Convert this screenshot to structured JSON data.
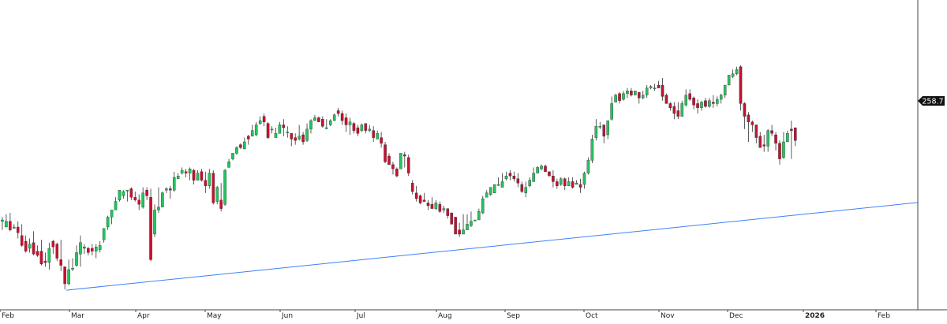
{
  "chart_data": {
    "type": "candlestick",
    "xlabel": "",
    "ylabel": "",
    "last_price": "258.7",
    "months": [
      "Feb",
      "Mar",
      "Apr",
      "May",
      "Jun",
      "Jul",
      "Aug",
      "Sep",
      "Oct",
      "Nov",
      "Dec",
      "2026",
      "Feb"
    ],
    "bold_months": [
      "2026"
    ],
    "ylim": [
      180,
      340
    ],
    "colors": {
      "up": "#22c55e",
      "down": "#c8102e",
      "wick": "#333333",
      "trendline": "#3b82f6",
      "axis": "#444444",
      "pricebox": "#111111"
    },
    "trendline": {
      "from": {
        "day": 80,
        "price": 193.5
      },
      "to": {
        "day": 1152,
        "price": 255.3
      }
    },
    "candles": [
      [
        240,
        234,
        247,
        234
      ],
      [
        242,
        243,
        245,
        236
      ],
      [
        238,
        242,
        247,
        241
      ],
      [
        242,
        236,
        248,
        235
      ],
      [
        237,
        238,
        240,
        237
      ],
      [
        238,
        234,
        242,
        230
      ],
      [
        232,
        225,
        240,
        224
      ],
      [
        228,
        221,
        232,
        220
      ],
      [
        223,
        226,
        230,
        220
      ],
      [
        227,
        219,
        235,
        218
      ],
      [
        221,
        218,
        225,
        217
      ],
      [
        221,
        212,
        229,
        211
      ],
      [
        214,
        213,
        220,
        210
      ],
      [
        213,
        223,
        227,
        208
      ],
      [
        228,
        224,
        229,
        219
      ],
      [
        226,
        216,
        227,
        214
      ],
      [
        215,
        211,
        229,
        207
      ],
      [
        210,
        198,
        210,
        194
      ],
      [
        198,
        208,
        215,
        197
      ],
      [
        209,
        209,
        216,
        207
      ],
      [
        211,
        220,
        225,
        210
      ],
      [
        219,
        227,
        232,
        210
      ],
      [
        223,
        224,
        226,
        219
      ],
      [
        223,
        220,
        224,
        218
      ],
      [
        223,
        221,
        226,
        218
      ],
      [
        221,
        224,
        226,
        216
      ],
      [
        222,
        225,
        228,
        220
      ],
      [
        229,
        237,
        237,
        227
      ],
      [
        238,
        245,
        246,
        236
      ],
      [
        245,
        250,
        250,
        240
      ],
      [
        250,
        256,
        259,
        250
      ],
      [
        257,
        264,
        264,
        256
      ],
      [
        260,
        263,
        264,
        258
      ],
      [
        264,
        264,
        264,
        256
      ],
      [
        265,
        259,
        266,
        257
      ],
      [
        259,
        257,
        263,
        256
      ],
      [
        257,
        254,
        261,
        250
      ],
      [
        252,
        262,
        266,
        251
      ],
      [
        264,
        260,
        266,
        257
      ],
      [
        259,
        215,
        265,
        214
      ],
      [
        233,
        250,
        254,
        231
      ],
      [
        250,
        252,
        266,
        248
      ],
      [
        252,
        262,
        263,
        252
      ],
      [
        264,
        265,
        266,
        262
      ],
      [
        265,
        264,
        267,
        258
      ],
      [
        264,
        273,
        277,
        263
      ],
      [
        272,
        274,
        276,
        272
      ],
      [
        276,
        278,
        280,
        275
      ],
      [
        277,
        276,
        279,
        273
      ],
      [
        276,
        279,
        280,
        271
      ],
      [
        278,
        271,
        279,
        268
      ],
      [
        271,
        276,
        278,
        275
      ],
      [
        277,
        271,
        279,
        270
      ],
      [
        271,
        267,
        277,
        262
      ],
      [
        267,
        276,
        279,
        265
      ],
      [
        276,
        255,
        278,
        254
      ],
      [
        256,
        266,
        267,
        254
      ],
      [
        257,
        251,
        269,
        249
      ],
      [
        254,
        278,
        279,
        253
      ],
      [
        280,
        284,
        286,
        280
      ],
      [
        286,
        290,
        288,
        285
      ],
      [
        290,
        294,
        295,
        289
      ],
      [
        296,
        294,
        297,
        293
      ],
      [
        293,
        298,
        301,
        293
      ],
      [
        302,
        300,
        303,
        296
      ],
      [
        302,
        306,
        310,
        303
      ],
      [
        303,
        310,
        312,
        302
      ],
      [
        311,
        313,
        316,
        310
      ],
      [
        316,
        312,
        318,
        309
      ],
      [
        311,
        301,
        312,
        300
      ],
      [
        307,
        307,
        309,
        304
      ],
      [
        301,
        304,
        308,
        302
      ],
      [
        304,
        310,
        312,
        306
      ],
      [
        310,
        308,
        314,
        302
      ],
      [
        305,
        305,
        309,
        301
      ],
      [
        304,
        300,
        304,
        295
      ],
      [
        301,
        299,
        304,
        296
      ],
      [
        300,
        302,
        310,
        299
      ],
      [
        303,
        298,
        305,
        296
      ],
      [
        299,
        307,
        311,
        298
      ],
      [
        307,
        313,
        314,
        304
      ],
      [
        313,
        315,
        317,
        314
      ],
      [
        315,
        312,
        316,
        312
      ],
      [
        314,
        309,
        316,
        308
      ],
      [
        308,
        308,
        314,
        307
      ],
      [
        310,
        313,
        314,
        309
      ],
      [
        313,
        317,
        318,
        314
      ],
      [
        320,
        318,
        322,
        316
      ],
      [
        318,
        313,
        320,
        310
      ],
      [
        315,
        310,
        318,
        305
      ],
      [
        310,
        312,
        315,
        303
      ],
      [
        311,
        306,
        312,
        304
      ],
      [
        308,
        304,
        310,
        302
      ],
      [
        306,
        310,
        311,
        305
      ],
      [
        311,
        306,
        310,
        304
      ],
      [
        306,
        307,
        310,
        305
      ],
      [
        306,
        301,
        309,
        298
      ],
      [
        300,
        304,
        306,
        300
      ],
      [
        301,
        297,
        305,
        294
      ],
      [
        296,
        284,
        298,
        283
      ],
      [
        288,
        282,
        290,
        282
      ],
      [
        282,
        279,
        284,
        275
      ],
      [
        279,
        274,
        280,
        273
      ],
      [
        279,
        290,
        290,
        279
      ],
      [
        289,
        288,
        291,
        280
      ],
      [
        287,
        276,
        289,
        274
      ],
      [
        269,
        263,
        271,
        261
      ],
      [
        262,
        258,
        267,
        256
      ],
      [
        260,
        255,
        261,
        254
      ],
      [
        257,
        256,
        262,
        257
      ],
      [
        255,
        253,
        257,
        250
      ],
      [
        254,
        251,
        259,
        251
      ],
      [
        251,
        255,
        257,
        250
      ],
      [
        254,
        249,
        256,
        248
      ],
      [
        250,
        251,
        253,
        248
      ],
      [
        251,
        246,
        251,
        244
      ],
      [
        248,
        240,
        248,
        240
      ],
      [
        245,
        233,
        245,
        236
      ],
      [
        236,
        233,
        241,
        231
      ],
      [
        233,
        236,
        247,
        233
      ],
      [
        236,
        240,
        247,
        237
      ],
      [
        239,
        242,
        249,
        238
      ],
      [
        243,
        243,
        243,
        242
      ],
      [
        243,
        249,
        251,
        243
      ],
      [
        248,
        258,
        260,
        247
      ],
      [
        259,
        262,
        264,
        260
      ],
      [
        261,
        266,
        266,
        260
      ],
      [
        262,
        268,
        268,
        265
      ],
      [
        268,
        268,
        273,
        267
      ],
      [
        266,
        270,
        276,
        266
      ],
      [
        272,
        274,
        277,
        271
      ],
      [
        276,
        274,
        278,
        271
      ],
      [
        274,
        272,
        277,
        270
      ],
      [
        272,
        269,
        276,
        266
      ],
      [
        268,
        263,
        270,
        262
      ],
      [
        262,
        266,
        270,
        259
      ],
      [
        267,
        271,
        273,
        266
      ],
      [
        270,
        276,
        280,
        270
      ],
      [
        276,
        280,
        281,
        276
      ],
      [
        279,
        281,
        282,
        278
      ],
      [
        281,
        277,
        282,
        279
      ],
      [
        277,
        274,
        276,
        274
      ],
      [
        274,
        270,
        278,
        266
      ],
      [
        270,
        267,
        272,
        265
      ],
      [
        268,
        272,
        273,
        267
      ],
      [
        272,
        267,
        273,
        264
      ],
      [
        267,
        270,
        273,
        267
      ],
      [
        270,
        266,
        273,
        265
      ],
      [
        268,
        269,
        271,
        268
      ],
      [
        268,
        266,
        272,
        262
      ],
      [
        268,
        276,
        277,
        265
      ],
      [
        276,
        285,
        287,
        275
      ],
      [
        285,
        300,
        303,
        283
      ],
      [
        301,
        309,
        314,
        299
      ],
      [
        309,
        309,
        312,
        307
      ],
      [
        310,
        302,
        310,
        297
      ],
      [
        303,
        313,
        313,
        300
      ],
      [
        314,
        325,
        330,
        313
      ],
      [
        326,
        331,
        332,
        326
      ],
      [
        332,
        327,
        333,
        325
      ],
      [
        328,
        332,
        334,
        327
      ],
      [
        332,
        334,
        336,
        329
      ],
      [
        334,
        331,
        336,
        330
      ],
      [
        331,
        334,
        334,
        333
      ],
      [
        333,
        329,
        331,
        325
      ],
      [
        329,
        331,
        334,
        328
      ],
      [
        331,
        336,
        338,
        329
      ],
      [
        336,
        337,
        338,
        335
      ],
      [
        336,
        336,
        339,
        334
      ],
      [
        338,
        336,
        341,
        336
      ],
      [
        338,
        330,
        343,
        327
      ],
      [
        331,
        325,
        332,
        325
      ],
      [
        325,
        322,
        326,
        320
      ],
      [
        323,
        318,
        326,
        314
      ],
      [
        320,
        316,
        326,
        314
      ],
      [
        316,
        325,
        327,
        316
      ],
      [
        324,
        331,
        335,
        323
      ],
      [
        332,
        328,
        335,
        327
      ],
      [
        329,
        324,
        330,
        321
      ],
      [
        325,
        322,
        328,
        318
      ],
      [
        322,
        326,
        327,
        320
      ],
      [
        327,
        323,
        329,
        322
      ],
      [
        323,
        327,
        329,
        322
      ],
      [
        326,
        325,
        331,
        322
      ],
      [
        325,
        328,
        330,
        323
      ],
      [
        328,
        331,
        332,
        325
      ],
      [
        331,
        338,
        338,
        329
      ],
      [
        338,
        345,
        344,
        338
      ],
      [
        344,
        346,
        349,
        343
      ],
      [
        346,
        349,
        351,
        345
      ],
      [
        351,
        325,
        352,
        320
      ],
      [
        325,
        316,
        326,
        307
      ],
      [
        317,
        312,
        319,
        298
      ],
      [
        312,
        310,
        313,
        305
      ],
      [
        310,
        301,
        310,
        297
      ],
      [
        302,
        294,
        305,
        294
      ],
      [
        296,
        295,
        303,
        291
      ],
      [
        295,
        306,
        307,
        291
      ],
      [
        306,
        304,
        310,
        302
      ],
      [
        303,
        297,
        305,
        292
      ],
      [
        297,
        286,
        299,
        282
      ],
      [
        287,
        298,
        305,
        286
      ],
      [
        298,
        304,
        306,
        301
      ],
      [
        307,
        306,
        313,
        286
      ],
      [
        308,
        299,
        307,
        295
      ]
    ]
  }
}
